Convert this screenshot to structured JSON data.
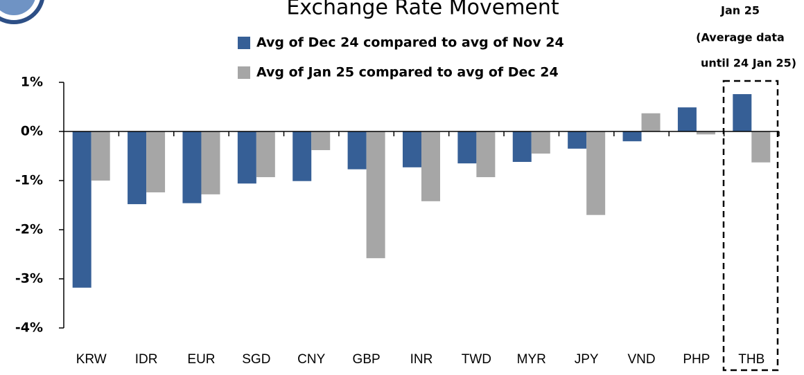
{
  "chart_data": {
    "type": "bar",
    "title": "Exchange Rate Movement",
    "annotation": [
      "Jan 25",
      "(Average data",
      "until 24 Jan 25)"
    ],
    "categories": [
      "KRW",
      "IDR",
      "EUR",
      "SGD",
      "CNY",
      "GBP",
      "INR",
      "TWD",
      "MYR",
      "JPY",
      "VND",
      "PHP",
      "THB"
    ],
    "series": [
      {
        "name": "Avg of Dec 24 compared to avg of Nov 24",
        "color": "#365f96",
        "values": [
          -3.18,
          -1.48,
          -1.46,
          -1.06,
          -1.01,
          -0.77,
          -0.73,
          -0.65,
          -0.62,
          -0.35,
          -0.2,
          0.49,
          0.76
        ]
      },
      {
        "name": "Avg of Jan 25 compared to avg of Dec 24",
        "color": "#a6a6a6",
        "values": [
          -1.0,
          -1.24,
          -1.28,
          -0.93,
          -0.38,
          -2.58,
          -1.42,
          -0.93,
          -0.45,
          -1.7,
          0.37,
          -0.06,
          -0.63
        ]
      }
    ],
    "ylim": [
      -4,
      1
    ],
    "yticks": [
      {
        "value": 1,
        "label": "1%"
      },
      {
        "value": 0,
        "label": "0%"
      },
      {
        "value": -1,
        "label": "-1%"
      },
      {
        "value": -2,
        "label": "-2%"
      },
      {
        "value": -3,
        "label": "-3%"
      },
      {
        "value": -4,
        "label": "-4%"
      }
    ],
    "grid": false
  }
}
